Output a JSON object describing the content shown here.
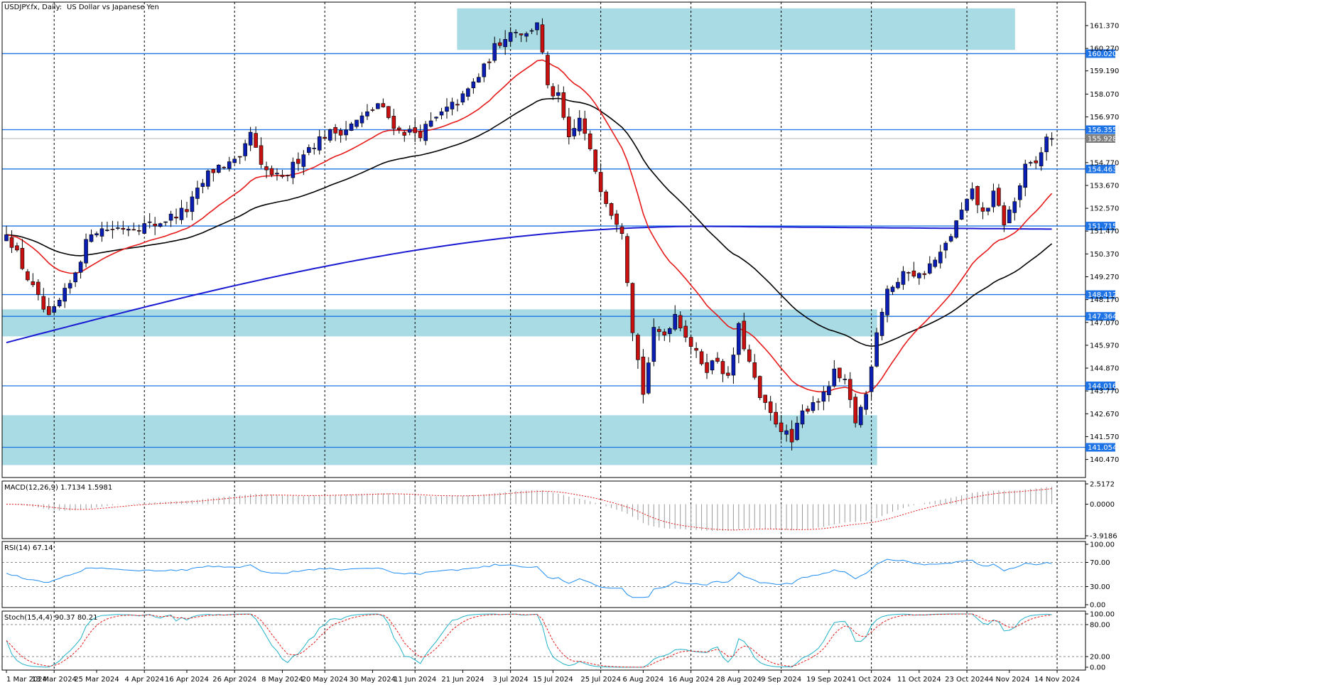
{
  "header": {
    "symbol": "USDJPY.fx, Daily:",
    "description": "US Dollar vs Japanese Yen"
  },
  "colors": {
    "bull": "#0b1eb4",
    "bear": "#c81010",
    "line": "#1e73e6",
    "zone": "#a8dbe4",
    "ma_fast": "#e61a1a",
    "ma_mid": "#000000",
    "ma_slow": "#1a1ad2",
    "grid": "#000000"
  },
  "chart_data": {
    "type": "candlestick",
    "price_axis": {
      "ylim": [
        139.6,
        162.5
      ],
      "ticks": [
        "161.370",
        "160.270",
        "159.190",
        "158.070",
        "156.970",
        "154.770",
        "153.670",
        "152.570",
        "151.470",
        "150.370",
        "149.270",
        "148.170",
        "147.070",
        "145.970",
        "144.870",
        "143.770",
        "142.670",
        "141.570",
        "140.470"
      ],
      "tick_values": [
        161.37,
        160.27,
        159.19,
        158.07,
        156.97,
        154.77,
        153.67,
        152.57,
        151.47,
        150.37,
        149.27,
        148.17,
        147.07,
        145.97,
        144.87,
        143.77,
        142.67,
        141.57,
        140.47
      ],
      "current_price": "155.928",
      "current_price_value": 155.928
    },
    "date_labels": [
      "1 Mar 2024",
      "13 Mar 2024",
      "25 Mar 2024",
      "4 Apr 2024",
      "16 Apr 2024",
      "26 Apr 2024",
      "8 May 2024",
      "20 May 2024",
      "30 May 2024",
      "11 Jun 2024",
      "21 Jun 2024",
      "3 Jul 2024",
      "15 Jul 2024",
      "25 Jul 2024",
      "6 Aug 2024",
      "16 Aug 2024",
      "28 Aug 2024",
      "9 Sep 2024",
      "19 Sep 2024",
      "1 Oct 2024",
      "11 Oct 2024",
      "23 Oct 2024",
      "4 Nov 2024",
      "14 Nov 2024"
    ],
    "levels": [
      {
        "label": "160.020",
        "value": 160.02
      },
      {
        "label": "156.355",
        "value": 156.355
      },
      {
        "label": "154.463",
        "value": 154.463
      },
      {
        "label": "151.715",
        "value": 151.715
      },
      {
        "label": "148.412",
        "value": 148.412
      },
      {
        "label": "147.364",
        "value": 147.364
      },
      {
        "label": "144.016",
        "value": 144.016
      },
      {
        "label": "141.054",
        "value": 141.054
      }
    ],
    "zones": [
      {
        "from": "21 Jun 2024",
        "to": "4 Nov 2024",
        "low": 160.2,
        "high": 162.2
      },
      {
        "from": "1 Mar 2024",
        "to": "1 Oct 2024",
        "low": 146.4,
        "high": 147.7
      },
      {
        "from": "1 Mar 2024",
        "to": "1 Oct 2024",
        "low": 140.2,
        "high": 142.6
      }
    ],
    "close_anchors": [
      [
        0,
        151.5
      ],
      [
        4,
        149.2
      ],
      [
        8,
        147.2
      ],
      [
        12,
        148.9
      ],
      [
        16,
        151.5
      ],
      [
        20,
        151.6
      ],
      [
        24,
        151.7
      ],
      [
        28,
        151.8
      ],
      [
        34,
        152.5
      ],
      [
        38,
        154.2
      ],
      [
        40,
        154.6
      ],
      [
        44,
        154.8
      ],
      [
        46,
        156.2
      ],
      [
        48,
        154.5
      ],
      [
        52,
        153.9
      ],
      [
        56,
        155.3
      ],
      [
        60,
        156.1
      ],
      [
        64,
        156.4
      ],
      [
        68,
        157.1
      ],
      [
        70,
        157.6
      ],
      [
        74,
        156.3
      ],
      [
        78,
        156.2
      ],
      [
        82,
        157.1
      ],
      [
        86,
        157.9
      ],
      [
        90,
        159.3
      ],
      [
        92,
        160.3
      ],
      [
        94,
        160.9
      ],
      [
        96,
        161.2
      ],
      [
        98,
        160.9
      ],
      [
        100,
        161.6
      ],
      [
        102,
        158.3
      ],
      [
        104,
        157.9
      ],
      [
        106,
        155.8
      ],
      [
        108,
        156.9
      ],
      [
        112,
        153.6
      ],
      [
        114,
        152.4
      ],
      [
        116,
        151.6
      ],
      [
        118,
        146.8
      ],
      [
        120,
        143.7
      ],
      [
        122,
        146.6
      ],
      [
        124,
        146.5
      ],
      [
        126,
        147.5
      ],
      [
        128,
        146.5
      ],
      [
        130,
        145.5
      ],
      [
        132,
        144.9
      ],
      [
        134,
        145.3
      ],
      [
        136,
        144.3
      ],
      [
        138,
        146.8
      ],
      [
        140,
        145.1
      ],
      [
        142,
        143.4
      ],
      [
        144,
        142.6
      ],
      [
        146,
        142.0
      ],
      [
        148,
        141.3
      ],
      [
        150,
        142.7
      ],
      [
        152,
        143.3
      ],
      [
        154,
        143.5
      ],
      [
        156,
        144.6
      ],
      [
        158,
        144.1
      ],
      [
        160,
        142.3
      ],
      [
        162,
        143.6
      ],
      [
        164,
        146.7
      ],
      [
        166,
        148.7
      ],
      [
        168,
        149.0
      ],
      [
        170,
        149.6
      ],
      [
        172,
        149.3
      ],
      [
        174,
        149.8
      ],
      [
        176,
        150.3
      ],
      [
        178,
        151.3
      ],
      [
        180,
        152.4
      ],
      [
        182,
        153.3
      ],
      [
        184,
        152.3
      ],
      [
        186,
        153.2
      ],
      [
        188,
        151.9
      ],
      [
        190,
        152.9
      ],
      [
        192,
        154.5
      ],
      [
        194,
        154.7
      ],
      [
        196,
        155.9
      ]
    ],
    "indicators": {
      "macd": {
        "label": "MACD(12,26,9) 1.7134 1.5981",
        "ticks": [
          "2.5172",
          "0.0000",
          "-3.9186"
        ],
        "ylim": [
          -3.9186,
          2.5172
        ]
      },
      "rsi": {
        "label": "RSI(14) 67.14",
        "ticks": [
          "100.00",
          "70.00",
          "30.00",
          "0.00"
        ],
        "ylim": [
          0,
          100
        ]
      },
      "stoch": {
        "label": "Stoch(15,4,4) 90.37 80.21",
        "ticks": [
          "100.00",
          "80.00",
          "20.00",
          "0.00"
        ],
        "ylim": [
          0,
          100
        ]
      }
    }
  }
}
